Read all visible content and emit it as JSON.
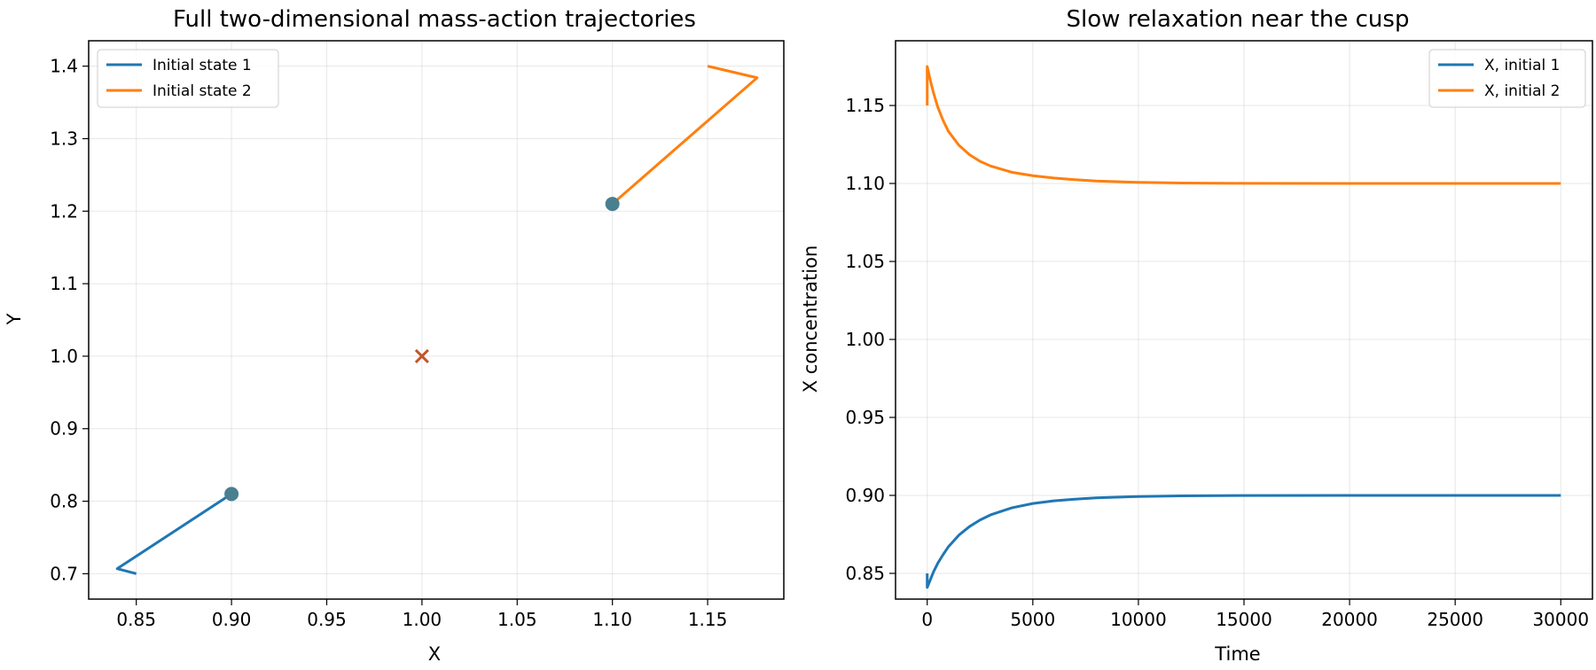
{
  "colors": {
    "series1": "#1f77b4",
    "series2": "#ff7f0e",
    "marker_dot": "#4a7f8f",
    "marker_x": "#c0562a"
  },
  "chart_data": [
    {
      "type": "line",
      "title": "Full two-dimensional mass-action trajectories",
      "xlabel": "X",
      "ylabel": "Y",
      "xlim": [
        0.825,
        1.19
      ],
      "ylim": [
        0.665,
        1.435
      ],
      "xticks": [
        0.85,
        0.9,
        0.95,
        1.0,
        1.05,
        1.1,
        1.15
      ],
      "xtick_labels": [
        "0.85",
        "0.90",
        "0.95",
        "1.00",
        "1.05",
        "1.10",
        "1.15"
      ],
      "yticks": [
        0.7,
        0.8,
        0.9,
        1.0,
        1.1,
        1.2,
        1.3,
        1.4
      ],
      "ytick_labels": [
        "0.7",
        "0.8",
        "0.9",
        "1.0",
        "1.1",
        "1.2",
        "1.3",
        "1.4"
      ],
      "grid": true,
      "legend": "upper-left",
      "series": [
        {
          "name": "Initial state 1",
          "color": "#1f77b4",
          "x": [
            0.85,
            0.84,
            0.9
          ],
          "y": [
            0.7,
            0.707,
            0.81
          ]
        },
        {
          "name": "Initial state 2",
          "color": "#ff7f0e",
          "x": [
            1.15,
            1.176,
            1.1
          ],
          "y": [
            1.4,
            1.384,
            1.21
          ]
        }
      ],
      "markers": [
        {
          "shape": "dot",
          "x": 0.9,
          "y": 0.81,
          "color": "#4a7f8f"
        },
        {
          "shape": "dot",
          "x": 1.1,
          "y": 1.21,
          "color": "#4a7f8f"
        },
        {
          "shape": "x",
          "x": 1.0,
          "y": 1.0,
          "color": "#c0562a"
        }
      ]
    },
    {
      "type": "line",
      "title": "Slow relaxation near the cusp",
      "xlabel": "Time",
      "ylabel": "X concentration",
      "xlim": [
        -1500,
        31500
      ],
      "ylim": [
        0.8335,
        1.1915
      ],
      "xticks": [
        0,
        5000,
        10000,
        15000,
        20000,
        25000,
        30000
      ],
      "xtick_labels": [
        "0",
        "5000",
        "10000",
        "15000",
        "20000",
        "25000",
        "30000"
      ],
      "yticks": [
        0.85,
        0.9,
        0.95,
        1.0,
        1.05,
        1.1,
        1.15
      ],
      "ytick_labels": [
        "0.85",
        "0.90",
        "0.95",
        "1.00",
        "1.05",
        "1.10",
        "1.15"
      ],
      "grid": true,
      "legend": "upper-right",
      "series": [
        {
          "name": "X, initial 1",
          "color": "#1f77b4",
          "x": [
            0,
            0,
            0,
            150,
            300,
            500,
            750,
            1000,
            1500,
            2000,
            2500,
            3000,
            4000,
            5000,
            6000,
            7000,
            8000,
            10000,
            12000,
            15000,
            20000,
            25000,
            30000
          ],
          "y": [
            0.85,
            0.842,
            0.841,
            0.846,
            0.851,
            0.8565,
            0.862,
            0.867,
            0.8745,
            0.88,
            0.8842,
            0.8875,
            0.892,
            0.8948,
            0.8965,
            0.8976,
            0.8984,
            0.8993,
            0.8997,
            0.8999,
            0.9,
            0.9,
            0.9
          ]
        },
        {
          "name": "X, initial 2",
          "color": "#ff7f0e",
          "x": [
            0,
            0,
            0,
            150,
            300,
            500,
            750,
            1000,
            1500,
            2000,
            2500,
            3000,
            4000,
            5000,
            6000,
            7000,
            8000,
            10000,
            12000,
            15000,
            20000,
            25000,
            30000
          ],
          "y": [
            1.15,
            1.174,
            1.175,
            1.166,
            1.158,
            1.149,
            1.1405,
            1.1335,
            1.1245,
            1.1185,
            1.1142,
            1.1112,
            1.1072,
            1.105,
            1.1035,
            1.1024,
            1.1016,
            1.1007,
            1.1003,
            1.1001,
            1.1,
            1.1,
            1.1
          ]
        }
      ]
    }
  ]
}
